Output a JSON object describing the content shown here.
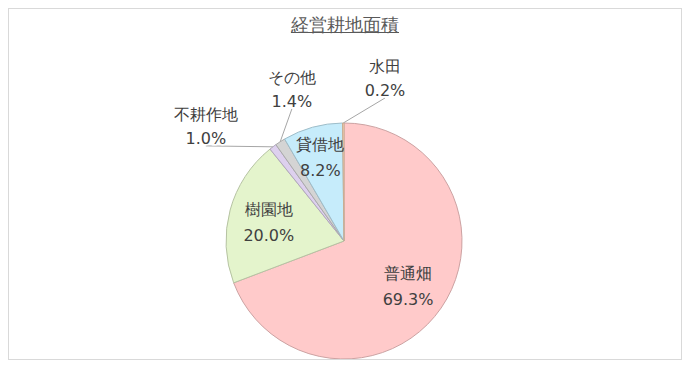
{
  "chart_data": {
    "type": "pie",
    "title": "経営耕地面積",
    "categories": [
      "普通畑",
      "樹園地",
      "不耕作地",
      "その他",
      "貸借地",
      "水田"
    ],
    "values": [
      69.3,
      20.0,
      1.0,
      1.4,
      8.2,
      0.2
    ],
    "value_labels": [
      "69.3%",
      "20.0%",
      "1.0%",
      "1.4%",
      "8.2%",
      "0.2%"
    ],
    "colors": [
      "#ffcaca",
      "#e4f4cc",
      "#ddd0ee",
      "#d4d4d4",
      "#c6ecfb",
      "#fdd8b6"
    ],
    "data_labels": true
  }
}
